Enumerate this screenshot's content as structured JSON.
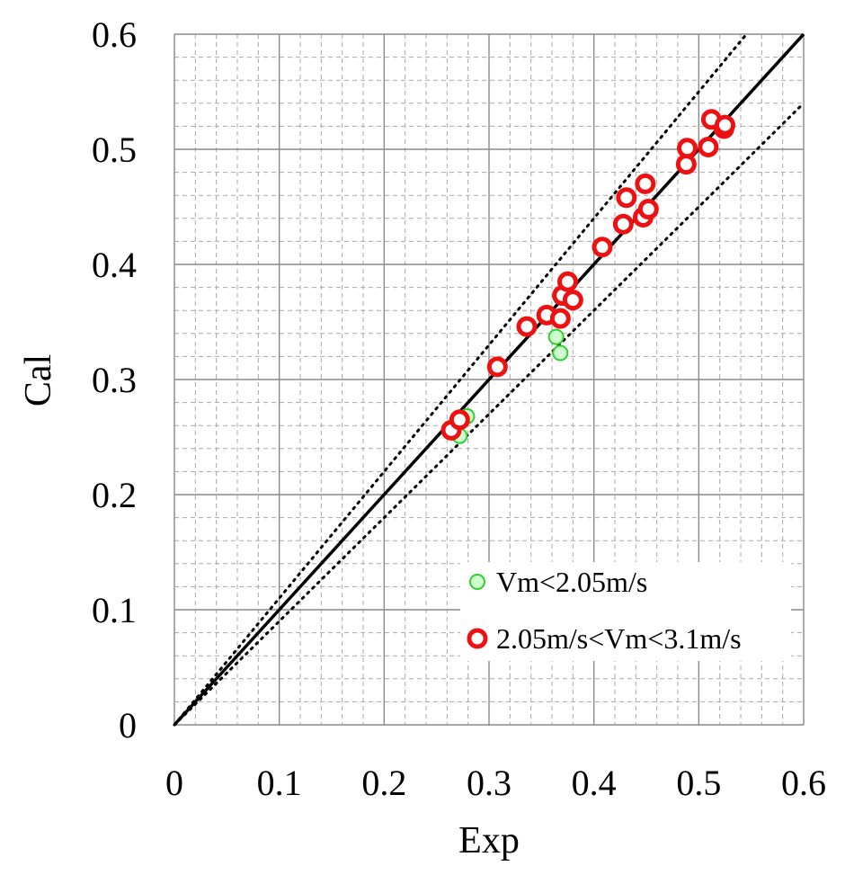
{
  "chart_data": {
    "type": "scatter",
    "title": "",
    "xlabel": "Exp",
    "ylabel": "Cal",
    "xlim": [
      0,
      0.6
    ],
    "ylim": [
      0,
      0.6
    ],
    "xticks": [
      "0",
      "0.1",
      "0.2",
      "0.3",
      "0.4",
      "0.5",
      "0.6"
    ],
    "yticks": [
      "0",
      "0.1",
      "0.2",
      "0.3",
      "0.4",
      "0.5",
      "0.6"
    ],
    "major_step": 0.1,
    "minor_step": 0.02,
    "grid": true,
    "legend_position": "bottom-right",
    "reference_lines": [
      {
        "style": "solid",
        "slope": 1.0,
        "color": "#000000"
      },
      {
        "style": "dotted",
        "slope": 1.1,
        "color": "#000000"
      },
      {
        "style": "dotted",
        "slope": 0.9,
        "color": "#000000"
      }
    ],
    "series": [
      {
        "name": "Vm<2.05m/s",
        "marker": "circle-thin",
        "color": "#33cc33",
        "fill": "#ccffcc",
        "points": [
          [
            0.279,
            0.268
          ],
          [
            0.272,
            0.251
          ],
          [
            0.364,
            0.337
          ],
          [
            0.368,
            0.323
          ]
        ]
      },
      {
        "name": "2.05m/s<Vm<3.1m/s",
        "marker": "circle-thick",
        "color": "#ee1111",
        "fill": "#ffffff",
        "points": [
          [
            0.264,
            0.256
          ],
          [
            0.272,
            0.265
          ],
          [
            0.308,
            0.311
          ],
          [
            0.336,
            0.346
          ],
          [
            0.355,
            0.356
          ],
          [
            0.368,
            0.353
          ],
          [
            0.37,
            0.373
          ],
          [
            0.375,
            0.385
          ],
          [
            0.38,
            0.369
          ],
          [
            0.408,
            0.415
          ],
          [
            0.428,
            0.435
          ],
          [
            0.431,
            0.458
          ],
          [
            0.447,
            0.441
          ],
          [
            0.449,
            0.47
          ],
          [
            0.452,
            0.448
          ],
          [
            0.488,
            0.487
          ],
          [
            0.489,
            0.501
          ],
          [
            0.509,
            0.502
          ],
          [
            0.512,
            0.526
          ],
          [
            0.524,
            0.518
          ],
          [
            0.525,
            0.521
          ]
        ]
      }
    ]
  }
}
